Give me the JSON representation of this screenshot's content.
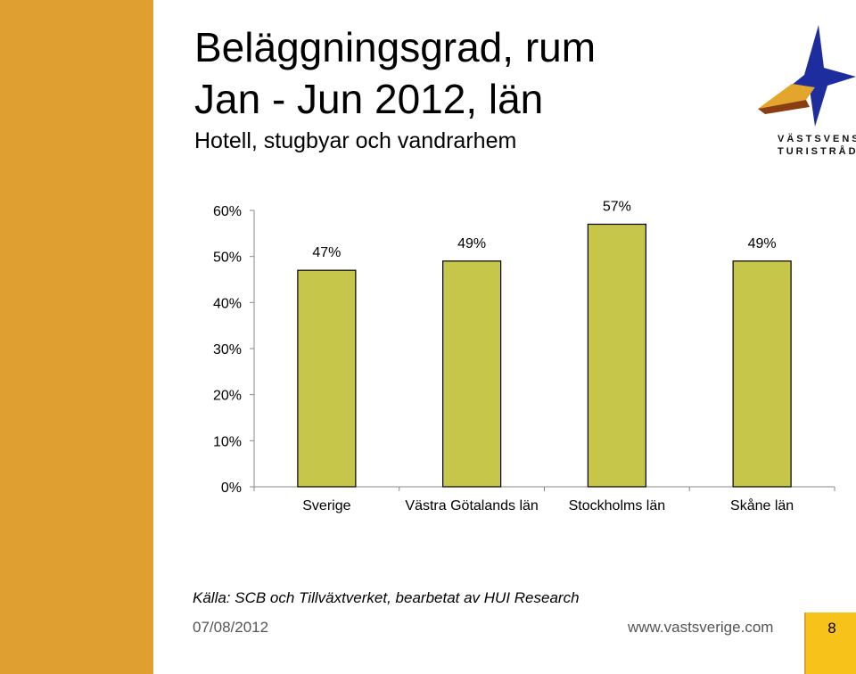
{
  "slide": {
    "title_line1": "Beläggningsgrad, rum",
    "title_line2": "Jan - Jun 2012, län",
    "subtitle": "Hotell, stugbyar och vandrarhem",
    "source": "Källa: SCB och Tillväxtverket, bearbetat av HUI Research",
    "date": "07/08/2012",
    "url": "www.vastsverige.com",
    "page_number": "8"
  },
  "logo": {
    "line1": "VÄSTSVENSKA",
    "line2": "TURISTRÅDET",
    "icon": "star-compass-logo"
  },
  "colors": {
    "left_band": "#e0a031",
    "bar_fill": "#c6c64a",
    "bar_stroke": "#000000",
    "page_box": "#f7c31a"
  },
  "chart_data": {
    "type": "bar",
    "categories": [
      "Sverige",
      "Västra Götalands län",
      "Stockholms län",
      "Skåne län"
    ],
    "values": [
      47,
      49,
      57,
      49
    ],
    "value_labels": [
      "47%",
      "49%",
      "57%",
      "49%"
    ],
    "ylim": [
      0,
      60
    ],
    "yticks": [
      "0%",
      "10%",
      "20%",
      "30%",
      "40%",
      "50%",
      "60%"
    ],
    "grid": false,
    "legend": "none",
    "title": "",
    "xlabel": "",
    "ylabel": ""
  }
}
